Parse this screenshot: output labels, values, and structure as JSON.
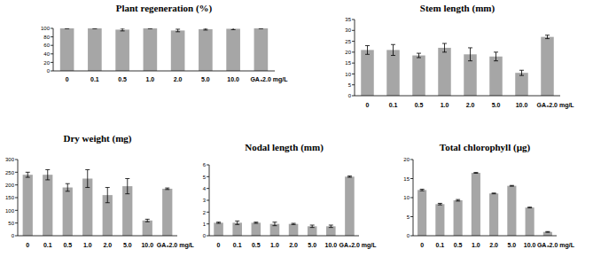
{
  "chart_data": [
    {
      "type": "bar",
      "title": "Plant regeneration (%)",
      "categories": [
        "0",
        "0.1",
        "0.5",
        "1.0",
        "2.0",
        "5.0",
        "10.0",
        "GA₃2.0 mg/L"
      ],
      "values": [
        100,
        100,
        97,
        100,
        95,
        98,
        99,
        100
      ],
      "errors": [
        0.5,
        0.5,
        3,
        0.5,
        3,
        2,
        2,
        0.5
      ],
      "color": "#a6a6a6",
      "ylim": [
        0,
        100
      ],
      "yticks": [
        0,
        20,
        40,
        60,
        80,
        100
      ]
    },
    {
      "type": "bar",
      "title": "Stem length (mm)",
      "categories": [
        "0",
        "0.1",
        "0.5",
        "1.0",
        "2.0",
        "5.0",
        "10.0",
        "GA₃2.0 mg/L"
      ],
      "values": [
        21,
        21,
        18.5,
        22,
        19,
        18,
        10.5,
        27
      ],
      "errors": [
        2,
        2.5,
        1,
        2,
        3,
        2,
        1.2,
        0.8
      ],
      "color": "#a6a6a6",
      "ylim": [
        0,
        35
      ],
      "yticks": [
        0,
        5,
        10,
        15,
        20,
        25,
        30,
        35
      ]
    },
    {
      "type": "bar",
      "title": "Dry weight (mg)",
      "categories": [
        "0",
        "0.1",
        "0.5",
        "1.0",
        "2.0",
        "5.0",
        "10.0",
        "GA₃2.0 mg/L"
      ],
      "values": [
        240,
        240,
        190,
        225,
        160,
        195,
        60,
        185
      ],
      "errors": [
        10,
        20,
        15,
        35,
        30,
        30,
        5,
        3
      ],
      "color": "#a6a6a6",
      "ylim": [
        0,
        300
      ],
      "yticks": [
        0,
        50,
        100,
        150,
        200,
        250,
        300
      ]
    },
    {
      "type": "bar",
      "title": "Nodal length (mm)",
      "categories": [
        "0",
        "0.1",
        "0.5",
        "1.0",
        "2.0",
        "5.0",
        "10.0",
        "GA₃2.0 mg/L"
      ],
      "values": [
        1.1,
        1.1,
        1.1,
        1.0,
        1.0,
        0.8,
        0.8,
        5.0
      ],
      "errors": [
        0.05,
        0.15,
        0.05,
        0.15,
        0.05,
        0.1,
        0.1,
        0.05
      ],
      "color": "#a6a6a6",
      "ylim": [
        0,
        6
      ],
      "yticks": [
        0,
        1,
        2,
        3,
        4,
        5,
        6
      ]
    },
    {
      "type": "bar",
      "title": "Total chlorophyll (µg)",
      "categories": [
        "0",
        "0.1",
        "0.5",
        "1.0",
        "2.0",
        "5.0",
        "10.0",
        "GA₃2.0 mg/L"
      ],
      "values": [
        12,
        8.3,
        9.3,
        16.5,
        11.1,
        13.1,
        7.4,
        1.0
      ],
      "errors": [
        0.2,
        0.2,
        0.2,
        0.1,
        0.1,
        0.1,
        0.1,
        0.1
      ],
      "color": "#a6a6a6",
      "ylim": [
        0,
        20
      ],
      "yticks": [
        0,
        5,
        10,
        15,
        20
      ]
    }
  ]
}
